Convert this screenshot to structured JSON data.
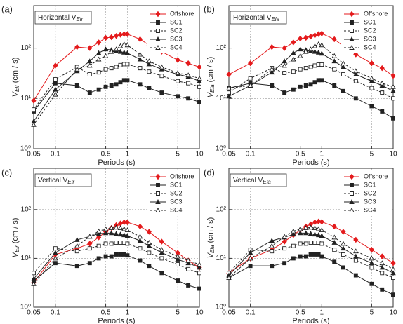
{
  "chart_data": [
    {
      "type": "line",
      "panel_label": "(a)",
      "title": "Horizontal V",
      "title_sub": "Elr",
      "ylabel": "V",
      "ylabel_sub": "Elr",
      "ylabel_unit": "(cm / s)",
      "xlabel": "Periods (s)",
      "log_x": true,
      "log_y": true,
      "grid": true,
      "legend": "upper right",
      "x": [
        0.05,
        0.1,
        0.2,
        0.3,
        0.4,
        0.5,
        0.6,
        0.7,
        0.8,
        0.9,
        1,
        1.5,
        2,
        3,
        5,
        7,
        10
      ],
      "xlim": [
        0.05,
        10
      ],
      "xticks": [
        0.05,
        0.1,
        0.5,
        1,
        5,
        10
      ],
      "ylim": [
        1,
        700
      ],
      "yticks": [
        {
          "value": 1,
          "label": "10⁰"
        },
        {
          "value": 10,
          "label": "10¹"
        },
        {
          "value": 100,
          "label": "10²"
        }
      ],
      "series": [
        {
          "name": "Offshore",
          "color": "#e41a1c",
          "marker": "diamond",
          "dash": false,
          "values": [
            9,
            45,
            105,
            100,
            130,
            160,
            165,
            175,
            185,
            190,
            190,
            150,
            115,
            85,
            58,
            50,
            42
          ]
        },
        {
          "name": "SC1",
          "color": "#222222",
          "marker": "square",
          "dash": false,
          "values": [
            5.5,
            20,
            18,
            13,
            15,
            17,
            18,
            19,
            21,
            23,
            23,
            19,
            16,
            13,
            11,
            10,
            8.5
          ]
        },
        {
          "name": "SC2",
          "color": "#222222",
          "marker": "square-open",
          "dash": true,
          "values": [
            6,
            24,
            42,
            30,
            33,
            38,
            40,
            42,
            46,
            48,
            48,
            40,
            34,
            28,
            22,
            20,
            17
          ]
        },
        {
          "name": "SC3",
          "color": "#222222",
          "marker": "triangle",
          "dash": false,
          "values": [
            3.5,
            15,
            35,
            55,
            80,
            95,
            92,
            88,
            85,
            82,
            80,
            60,
            48,
            38,
            30,
            27,
            22
          ]
        },
        {
          "name": "SC4",
          "color": "#222222",
          "marker": "triangle-open",
          "dash": true,
          "values": [
            3,
            12,
            38,
            45,
            60,
            70,
            85,
            95,
            110,
            120,
            115,
            75,
            55,
            42,
            32,
            29,
            25
          ]
        }
      ]
    },
    {
      "type": "line",
      "panel_label": "(b)",
      "title": "Horizontal V",
      "title_sub": "Ela",
      "ylabel": "V",
      "ylabel_sub": "Ela",
      "ylabel_unit": "(cm / s)",
      "xlabel": "Periods (s)",
      "log_x": true,
      "log_y": true,
      "grid": true,
      "legend": "upper right",
      "x": [
        0.05,
        0.1,
        0.2,
        0.3,
        0.4,
        0.5,
        0.6,
        0.7,
        0.8,
        0.9,
        1,
        1.5,
        2,
        3,
        5,
        7,
        10
      ],
      "xlim": [
        0.05,
        10
      ],
      "xticks": [
        0.05,
        0.1,
        0.5,
        1,
        5,
        10
      ],
      "ylim": [
        1,
        700
      ],
      "yticks": [
        {
          "value": 1,
          "label": "10⁰"
        },
        {
          "value": 10,
          "label": "10¹"
        },
        {
          "value": 100,
          "label": "10²"
        }
      ],
      "series": [
        {
          "name": "Offshore",
          "color": "#e41a1c",
          "marker": "diamond",
          "dash": false,
          "values": [
            30,
            50,
            105,
            100,
            130,
            155,
            160,
            170,
            180,
            190,
            195,
            150,
            110,
            75,
            50,
            40,
            28
          ]
        },
        {
          "name": "SC1",
          "color": "#222222",
          "marker": "square",
          "dash": false,
          "values": [
            16,
            20,
            18,
            13,
            15,
            17,
            18,
            19,
            21,
            23,
            23,
            18,
            14,
            10,
            7,
            5.5,
            4
          ]
        },
        {
          "name": "SC2",
          "color": "#222222",
          "marker": "square-open",
          "dash": true,
          "values": [
            13,
            25,
            40,
            32,
            34,
            38,
            40,
            42,
            45,
            47,
            47,
            38,
            30,
            22,
            16,
            13,
            10
          ]
        },
        {
          "name": "SC3",
          "color": "#222222",
          "marker": "triangle",
          "dash": false,
          "values": [
            11,
            18,
            33,
            55,
            80,
            95,
            92,
            88,
            85,
            82,
            78,
            55,
            42,
            30,
            22,
            18,
            14
          ]
        },
        {
          "name": "SC4",
          "color": "#222222",
          "marker": "triangle-open",
          "dash": true,
          "values": [
            16,
            18,
            38,
            45,
            60,
            70,
            85,
            95,
            110,
            120,
            115,
            70,
            50,
            35,
            25,
            20,
            17
          ]
        }
      ]
    },
    {
      "type": "line",
      "panel_label": "(c)",
      "title": "Vertical V",
      "title_sub": "Elr",
      "ylabel": "V",
      "ylabel_sub": "Elr",
      "ylabel_unit": "(cm / s)",
      "xlabel": "Periods (s)",
      "log_x": true,
      "log_y": true,
      "grid": true,
      "legend": "upper right",
      "x": [
        0.05,
        0.1,
        0.2,
        0.3,
        0.4,
        0.5,
        0.6,
        0.7,
        0.8,
        0.9,
        1,
        1.5,
        2,
        3,
        5,
        7,
        10
      ],
      "xlim": [
        0.05,
        10
      ],
      "xticks": [
        0.05,
        0.1,
        0.5,
        1,
        5,
        10
      ],
      "ylim": [
        1,
        700
      ],
      "yticks": [
        {
          "value": 1,
          "label": "10⁰"
        },
        {
          "value": 10,
          "label": "10¹"
        },
        {
          "value": 100,
          "label": "10²"
        }
      ],
      "series": [
        {
          "name": "Offshore",
          "color": "#e41a1c",
          "marker": "diamond",
          "dash": false,
          "values": [
            3.2,
            12,
            16,
            20,
            27,
            35,
            42,
            48,
            52,
            55,
            55,
            45,
            35,
            22,
            13,
            9,
            6.5
          ]
        },
        {
          "name": "SC1",
          "color": "#222222",
          "marker": "square",
          "dash": false,
          "values": [
            3.5,
            8,
            7,
            8,
            10,
            11,
            11,
            12,
            12,
            12,
            11.5,
            9,
            7,
            5,
            3.5,
            2.8,
            2.4
          ]
        },
        {
          "name": "SC2",
          "color": "#222222",
          "marker": "square-open",
          "dash": true,
          "values": [
            5,
            16,
            14,
            16,
            18,
            20,
            20,
            21,
            21,
            21,
            20,
            16,
            13,
            10,
            7.5,
            6,
            5
          ]
        },
        {
          "name": "SC3",
          "color": "#222222",
          "marker": "triangle",
          "dash": false,
          "values": [
            3.8,
            13,
            24,
            28,
            32,
            33,
            33,
            32,
            31,
            30,
            29,
            23,
            18,
            13,
            9.5,
            8,
            6.5
          ]
        },
        {
          "name": "SC4",
          "color": "#222222",
          "marker": "triangle-open",
          "dash": true,
          "values": [
            3,
            10,
            18,
            28,
            36,
            40,
            42,
            43,
            42,
            40,
            38,
            28,
            21,
            15,
            11,
            9,
            7.5
          ]
        }
      ]
    },
    {
      "type": "line",
      "panel_label": "(d)",
      "title": "Vertical V",
      "title_sub": "Ela",
      "ylabel": "V",
      "ylabel_sub": "Ela",
      "ylabel_unit": "(cm / s)",
      "xlabel": "Periods (s)",
      "log_x": true,
      "log_y": true,
      "grid": true,
      "legend": "upper right",
      "x": [
        0.05,
        0.1,
        0.2,
        0.3,
        0.4,
        0.5,
        0.6,
        0.7,
        0.8,
        0.9,
        1,
        1.5,
        2,
        3,
        5,
        7,
        10
      ],
      "xlim": [
        0.05,
        10
      ],
      "xticks": [
        0.05,
        0.1,
        0.5,
        1,
        5,
        10
      ],
      "ylim": [
        1,
        700
      ],
      "yticks": [
        {
          "value": 1,
          "label": "10⁰"
        },
        {
          "value": 10,
          "label": "10¹"
        },
        {
          "value": 100,
          "label": "10²"
        }
      ],
      "series": [
        {
          "name": "Offshore",
          "color": "#e41a1c",
          "marker": "diamond",
          "dash": false,
          "values": [
            5,
            10,
            15,
            22,
            30,
            38,
            45,
            50,
            55,
            57,
            56,
            45,
            35,
            24,
            15,
            11,
            8
          ]
        },
        {
          "name": "SC1",
          "color": "#222222",
          "marker": "square",
          "dash": false,
          "values": [
            4,
            7,
            7,
            8,
            10,
            11,
            11,
            12,
            12,
            12,
            11,
            8.5,
            6.5,
            4.5,
            3,
            2.3,
            1.8
          ]
        },
        {
          "name": "SC2",
          "color": "#222222",
          "marker": "square-open",
          "dash": true,
          "values": [
            5,
            15,
            14,
            16,
            18,
            20,
            20,
            21,
            21,
            21,
            20,
            15,
            12,
            9,
            6.5,
            5,
            4
          ]
        },
        {
          "name": "SC3",
          "color": "#222222",
          "marker": "triangle",
          "dash": false,
          "values": [
            4.5,
            13,
            23,
            27,
            31,
            33,
            33,
            32,
            31,
            30,
            29,
            21,
            16,
            11,
            8,
            6.5,
            5
          ]
        },
        {
          "name": "SC4",
          "color": "#222222",
          "marker": "triangle-open",
          "dash": true,
          "values": [
            4,
            10,
            18,
            28,
            36,
            40,
            42,
            43,
            42,
            40,
            38,
            27,
            20,
            14,
            10,
            8,
            6
          ]
        }
      ]
    }
  ]
}
